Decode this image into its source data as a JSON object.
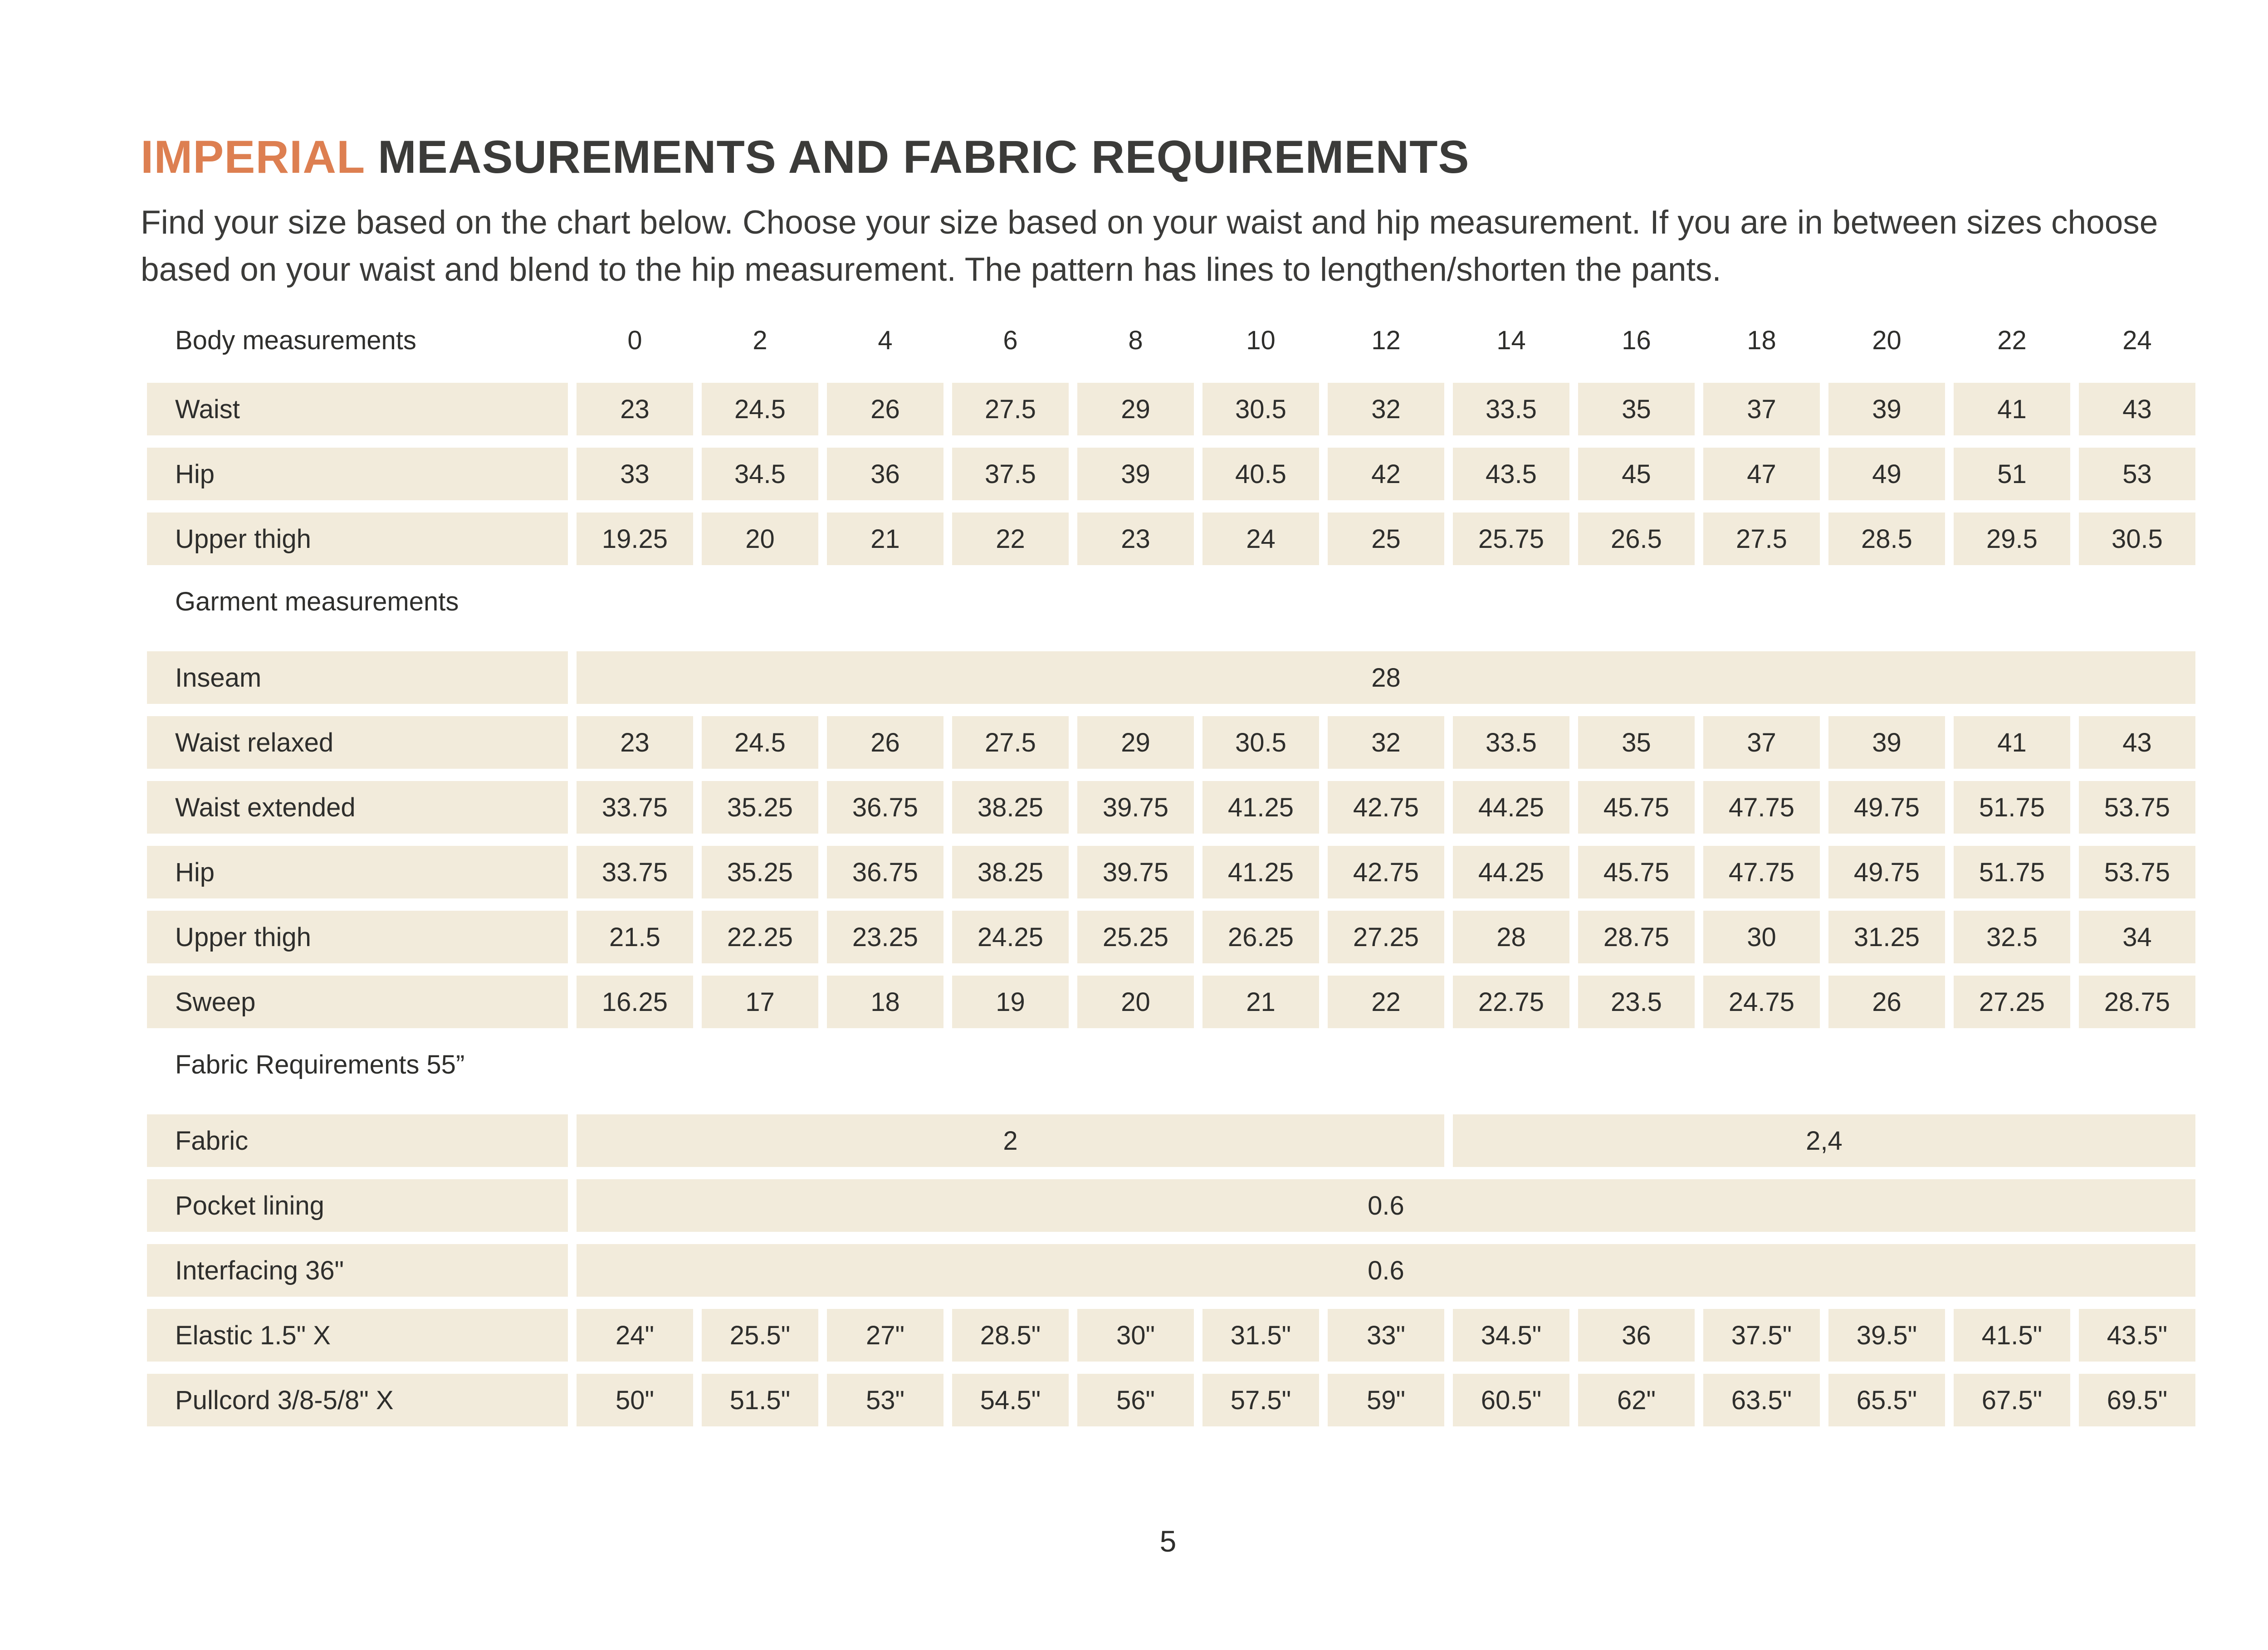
{
  "page": {
    "title_accent": "IMPERIAL",
    "title_rest": " MEASUREMENTS AND FABRIC REQUIREMENTS",
    "intro": "Find your size based on the chart below. Choose your size based on your waist and hip measurement. If you are in between sizes choose based on your waist and blend to the hip measurement. The pattern has lines to lengthen/shorten the pants.",
    "page_number": "5",
    "colors": {
      "accent_orange": "#dd7f51",
      "cell_beige": "#f2ebdb",
      "text_dark": "#3b3b39"
    }
  },
  "table": {
    "sizes": [
      "0",
      "2",
      "4",
      "6",
      "8",
      "10",
      "12",
      "14",
      "16",
      "18",
      "20",
      "22",
      "24"
    ],
    "sections": [
      {
        "label": "Body measurements",
        "show_sizes": true,
        "rows": [
          {
            "label": "Waist",
            "cells": [
              "23",
              "24.5",
              "26",
              "27.5",
              "29",
              "30.5",
              "32",
              "33.5",
              "35",
              "37",
              "39",
              "41",
              "43"
            ]
          },
          {
            "label": "Hip",
            "cells": [
              "33",
              "34.5",
              "36",
              "37.5",
              "39",
              "40.5",
              "42",
              "43.5",
              "45",
              "47",
              "49",
              "51",
              "53"
            ]
          },
          {
            "label": "Upper thigh",
            "cells": [
              "19.25",
              "20",
              "21",
              "22",
              "23",
              "24",
              "25",
              "25.75",
              "26.5",
              "27.5",
              "28.5",
              "29.5",
              "30.5"
            ]
          }
        ]
      },
      {
        "label": "Garment measurements",
        "show_sizes": false,
        "rows": [
          {
            "label": "Inseam",
            "cells": [
              {
                "t": "28",
                "span": 13
              }
            ]
          },
          {
            "label": "Waist relaxed",
            "cells": [
              "23",
              "24.5",
              "26",
              "27.5",
              "29",
              "30.5",
              "32",
              "33.5",
              "35",
              "37",
              "39",
              "41",
              "43"
            ]
          },
          {
            "label": "Waist extended",
            "cells": [
              "33.75",
              "35.25",
              "36.75",
              "38.25",
              "39.75",
              "41.25",
              "42.75",
              "44.25",
              "45.75",
              "47.75",
              "49.75",
              "51.75",
              "53.75"
            ]
          },
          {
            "label": "Hip",
            "cells": [
              "33.75",
              "35.25",
              "36.75",
              "38.25",
              "39.75",
              "41.25",
              "42.75",
              "44.25",
              "45.75",
              "47.75",
              "49.75",
              "51.75",
              "53.75"
            ]
          },
          {
            "label": "Upper thigh",
            "cells": [
              "21.5",
              "22.25",
              "23.25",
              "24.25",
              "25.25",
              "26.25",
              "27.25",
              "28",
              "28.75",
              "30",
              "31.25",
              "32.5",
              "34"
            ]
          },
          {
            "label": "Sweep",
            "cells": [
              "16.25",
              "17",
              "18",
              "19",
              "20",
              "21",
              "22",
              "22.75",
              "23.5",
              "24.75",
              "26",
              "27.25",
              "28.75"
            ]
          }
        ]
      },
      {
        "label": "Fabric Requirements 55”",
        "show_sizes": false,
        "rows": [
          {
            "label": "Fabric",
            "cells": [
              {
                "t": "2",
                "span": 7
              },
              {
                "t": "2,4",
                "span": 6
              }
            ]
          },
          {
            "label": "Pocket lining",
            "cells": [
              {
                "t": "0.6",
                "span": 13
              }
            ]
          },
          {
            "label": "Interfacing 36\"",
            "cells": [
              {
                "t": "0.6",
                "span": 13
              }
            ]
          },
          {
            "label": "Elastic 1.5\" X",
            "cells": [
              "24\"",
              "25.5\"",
              "27\"",
              "28.5\"",
              "30\"",
              "31.5\"",
              "33\"",
              "34.5\"",
              "36",
              "37.5\"",
              "39.5\"",
              "41.5\"",
              "43.5\""
            ]
          },
          {
            "label": "Pullcord 3/8-5/8\" X",
            "cells": [
              "50\"",
              "51.5\"",
              "53\"",
              "54.5\"",
              "56\"",
              "57.5\"",
              "59\"",
              "60.5\"",
              "62\"",
              "63.5\"",
              "65.5\"",
              "67.5\"",
              "69.5\""
            ]
          }
        ]
      }
    ]
  }
}
